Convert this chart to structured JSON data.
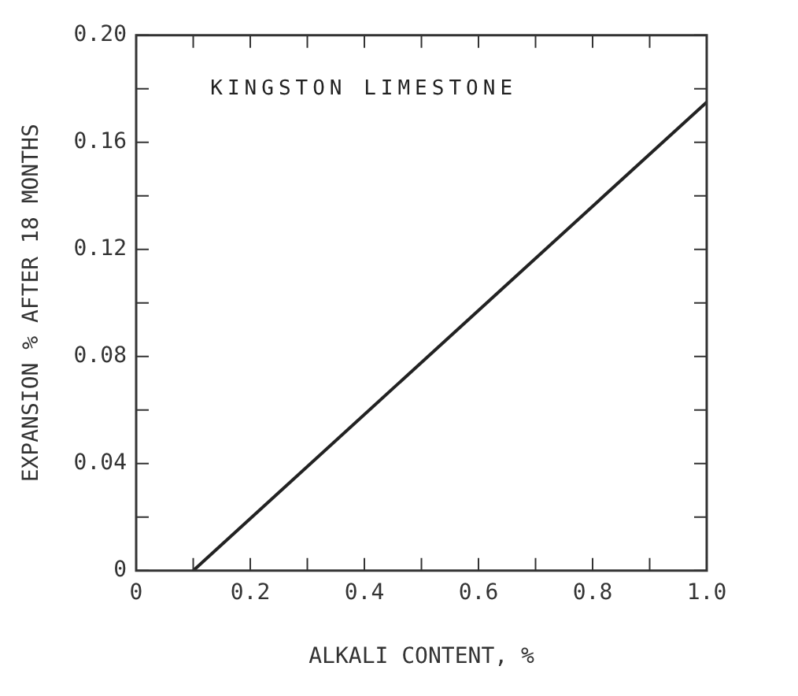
{
  "chart_data": {
    "type": "line",
    "xlabel": "ALKALI CONTENT, %",
    "ylabel": "EXPANSION % AFTER 18 MONTHS",
    "annotations": [
      "KINGSTON LIMESTONE"
    ],
    "x": [
      0.1,
      1.0
    ],
    "series": [
      {
        "color": "#222222",
        "values": [
          0,
          0.175
        ]
      }
    ],
    "xlim": [
      0,
      1.0
    ],
    "xticks": [
      {
        "value": 0,
        "label": "0"
      },
      {
        "value": 0.1,
        "label": null
      },
      {
        "value": 0.2,
        "label": "0.2"
      },
      {
        "value": 0.3,
        "label": null
      },
      {
        "value": 0.4,
        "label": "0.4"
      },
      {
        "value": 0.5,
        "label": null
      },
      {
        "value": 0.6,
        "label": "0.6"
      },
      {
        "value": 0.7,
        "label": null
      },
      {
        "value": 0.8,
        "label": "0.8"
      },
      {
        "value": 0.9,
        "label": null
      },
      {
        "value": 1.0,
        "label": "1.0"
      }
    ],
    "ylim": [
      0,
      0.2
    ],
    "yticks": [
      {
        "value": 0,
        "label": "0"
      },
      {
        "value": 0.02,
        "label": null
      },
      {
        "value": 0.04,
        "label": "0.04"
      },
      {
        "value": 0.06,
        "label": null
      },
      {
        "value": 0.08,
        "label": "0.08"
      },
      {
        "value": 0.1,
        "label": null
      },
      {
        "value": 0.12,
        "label": "0.12"
      },
      {
        "value": 0.14,
        "label": null
      },
      {
        "value": 0.16,
        "label": "0.16"
      },
      {
        "value": 0.18,
        "label": null
      },
      {
        "value": 0.2,
        "label": "0.20"
      }
    ]
  }
}
